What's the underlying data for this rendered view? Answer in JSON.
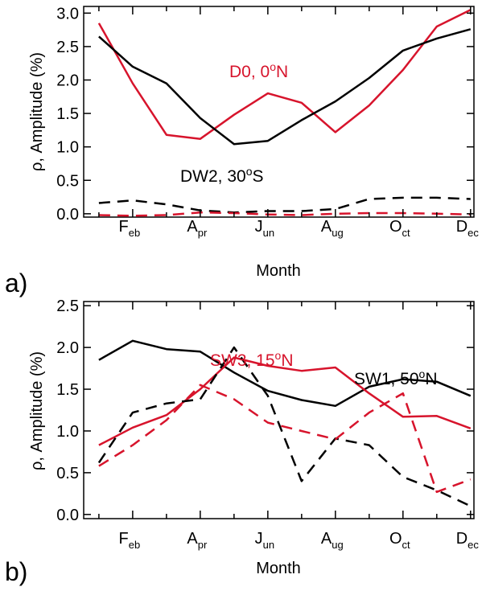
{
  "colors": {
    "red": "#d7142c",
    "black": "#000000"
  },
  "chart_data": [
    {
      "type": "line",
      "panel_label": "a)",
      "xlabel": "Month",
      "ylabel": "ρ, Amplitude (%)",
      "ylim": [
        -0.05,
        3.1
      ],
      "yticks": [
        "0.0",
        "0.5",
        "1.0",
        "1.5",
        "2.0",
        "2.5",
        "3.0"
      ],
      "xticks": [
        {
          "main": "F",
          "sub": "eb"
        },
        {
          "main": "A",
          "sub": "pr"
        },
        {
          "main": "J",
          "sub": "un"
        },
        {
          "main": "A",
          "sub": "ug"
        },
        {
          "main": "O",
          "sub": "ct"
        },
        {
          "main": "D",
          "sub": "ec"
        }
      ],
      "x": [
        1,
        2,
        3,
        4,
        5,
        6,
        7,
        8,
        9,
        10,
        11,
        12
      ],
      "annotations": [
        {
          "text": "D0, 0°N",
          "color": "red"
        },
        {
          "text": "DW2, 30°S",
          "color": "black"
        }
      ],
      "series": [
        {
          "color": "red",
          "dash": "solid",
          "values": [
            2.85,
            1.95,
            1.18,
            1.12,
            1.48,
            1.8,
            1.66,
            1.22,
            1.62,
            2.15,
            2.8,
            3.05
          ]
        },
        {
          "color": "black",
          "dash": "solid",
          "values": [
            2.65,
            2.2,
            1.95,
            1.43,
            1.04,
            1.09,
            1.4,
            1.68,
            2.03,
            2.44,
            2.62,
            2.76
          ]
        },
        {
          "color": "black",
          "dash": "dashed",
          "values": [
            0.16,
            0.2,
            0.14,
            0.05,
            0.02,
            0.04,
            0.04,
            0.07,
            0.22,
            0.24,
            0.24,
            0.22
          ]
        },
        {
          "color": "red",
          "dash": "dashed",
          "values": [
            -0.02,
            -0.03,
            -0.02,
            0.02,
            0.01,
            -0.01,
            -0.02,
            0.0,
            0.01,
            0.01,
            0.0,
            -0.01
          ]
        }
      ]
    },
    {
      "type": "line",
      "panel_label": "b)",
      "xlabel": "Month",
      "ylabel": "ρ, Amplitude (%)",
      "ylim": [
        -0.05,
        2.55
      ],
      "yticks": [
        "0.0",
        "0.5",
        "1.0",
        "1.5",
        "2.0",
        "2.5"
      ],
      "xticks": [
        {
          "main": "F",
          "sub": "eb"
        },
        {
          "main": "A",
          "sub": "pr"
        },
        {
          "main": "J",
          "sub": "un"
        },
        {
          "main": "A",
          "sub": "ug"
        },
        {
          "main": "O",
          "sub": "ct"
        },
        {
          "main": "D",
          "sub": "ec"
        }
      ],
      "x": [
        1,
        2,
        3,
        4,
        5,
        6,
        7,
        8,
        9,
        10,
        11,
        12
      ],
      "annotations": [
        {
          "text": "SW3, 15°N",
          "color": "red"
        },
        {
          "text": "SW1, 50°N",
          "color": "black"
        }
      ],
      "series": [
        {
          "color": "black",
          "dash": "solid",
          "values": [
            1.85,
            2.08,
            1.98,
            1.95,
            1.7,
            1.48,
            1.37,
            1.3,
            1.53,
            1.62,
            1.59,
            1.42
          ]
        },
        {
          "color": "red",
          "dash": "solid",
          "values": [
            0.83,
            1.04,
            1.19,
            1.5,
            1.88,
            1.78,
            1.72,
            1.76,
            1.45,
            1.17,
            1.18,
            1.03
          ]
        },
        {
          "color": "black",
          "dash": "dashed",
          "values": [
            0.62,
            1.22,
            1.33,
            1.38,
            2.0,
            1.42,
            0.4,
            0.91,
            0.83,
            0.45,
            0.29,
            0.1
          ]
        },
        {
          "color": "red",
          "dash": "dashed",
          "values": [
            0.58,
            0.83,
            1.13,
            1.55,
            1.38,
            1.1,
            1.0,
            0.9,
            1.22,
            1.45,
            0.27,
            0.42
          ]
        }
      ]
    }
  ]
}
